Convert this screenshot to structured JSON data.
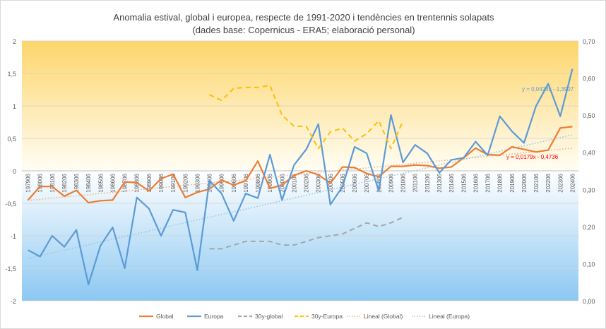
{
  "chart_data": {
    "type": "line",
    "title": "Anomalia estival, global i europea, respecte de 1991-2020 i tendències en trentennis solapats",
    "subtitle": "(dades base: Copernicus - ERA5; elaboració personal)",
    "x": [
      "197906",
      "198006",
      "198106",
      "198206",
      "198306",
      "198406",
      "198506",
      "198606",
      "198706",
      "198806",
      "198906",
      "199006",
      "199106",
      "199206",
      "199306",
      "199406",
      "199506",
      "199606",
      "199706",
      "199806",
      "199906",
      "200006",
      "200106",
      "200206",
      "200306",
      "200406",
      "200506",
      "200606",
      "200706",
      "200806",
      "200906",
      "201006",
      "201106",
      "201206",
      "201306",
      "201406",
      "201506",
      "201606",
      "201706",
      "201806",
      "201906",
      "202006",
      "202106",
      "202206",
      "202306",
      "202406"
    ],
    "ylim": [
      -2,
      2
    ],
    "yticks": [
      "2",
      "1,5",
      "1",
      "0,5",
      "0",
      "-0,5",
      "-1",
      "-1,5",
      "-2"
    ],
    "y2lim": [
      0,
      0.7
    ],
    "y2ticks": [
      "0,70",
      "0,60",
      "0,50",
      "0,40",
      "0,30",
      "0,20",
      "0,10",
      "0,00"
    ],
    "colors": {
      "global": "#ed7d31",
      "europa": "#5b9bd5",
      "g30": "#a5a5a5",
      "e30": "#ffc000",
      "lin_global": "#f4b183",
      "lin_europa": "#9dc3e6",
      "eq_global": "#ff0000",
      "eq_europa": "#5b9bd5"
    },
    "series": [
      {
        "name": "Global",
        "axis": "left",
        "style": "solid",
        "values": [
          -0.45,
          -0.24,
          -0.24,
          -0.39,
          -0.3,
          -0.49,
          -0.46,
          -0.45,
          -0.17,
          -0.18,
          -0.31,
          -0.12,
          -0.05,
          -0.41,
          -0.33,
          -0.28,
          -0.14,
          -0.22,
          -0.15,
          0.15,
          -0.27,
          -0.22,
          -0.07,
          0.0,
          -0.06,
          -0.19,
          0.06,
          0.05,
          -0.04,
          -0.09,
          0.07,
          0.07,
          0.09,
          0.08,
          0.04,
          0.06,
          0.2,
          0.35,
          0.25,
          0.24,
          0.37,
          0.33,
          0.29,
          0.32,
          0.66,
          0.68
        ]
      },
      {
        "name": "Europa",
        "axis": "left",
        "style": "solid",
        "values": [
          -1.22,
          -1.32,
          -1.0,
          -1.17,
          -0.91,
          -1.75,
          -1.15,
          -0.87,
          -1.5,
          -0.41,
          -0.58,
          -1.0,
          -0.6,
          -0.64,
          -1.53,
          -0.15,
          -0.35,
          -0.77,
          -0.35,
          -0.42,
          0.25,
          -0.45,
          0.09,
          0.33,
          0.72,
          -0.52,
          -0.24,
          0.37,
          0.27,
          -0.31,
          0.86,
          0.13,
          0.4,
          0.27,
          -0.03,
          0.17,
          0.2,
          0.45,
          0.24,
          0.84,
          0.61,
          0.43,
          1.0,
          1.34,
          0.84,
          1.57
        ]
      },
      {
        "name": "30y-global",
        "axis": "right",
        "style": "dashed",
        "values": [
          null,
          null,
          null,
          null,
          null,
          null,
          null,
          null,
          null,
          null,
          null,
          null,
          null,
          null,
          null,
          0.14,
          0.14,
          0.15,
          0.16,
          0.16,
          0.16,
          0.15,
          0.15,
          0.16,
          0.17,
          0.175,
          0.18,
          0.195,
          0.21,
          0.2,
          0.21,
          0.225,
          null,
          null,
          null,
          null,
          null,
          null,
          null,
          null,
          null,
          null,
          null,
          null,
          null,
          null
        ]
      },
      {
        "name": "30y-Europa",
        "axis": "right",
        "style": "dashed",
        "values": [
          null,
          null,
          null,
          null,
          null,
          null,
          null,
          null,
          null,
          null,
          null,
          null,
          null,
          null,
          null,
          0.555,
          0.54,
          0.572,
          0.575,
          0.575,
          0.58,
          0.5,
          0.47,
          0.47,
          0.41,
          0.455,
          0.465,
          0.43,
          0.45,
          0.485,
          0.41,
          0.485,
          null,
          null,
          null,
          null,
          null,
          null,
          null,
          null,
          null,
          null,
          null,
          null,
          null,
          null
        ]
      },
      {
        "name": "Lineal  (Global)",
        "axis": "left",
        "style": "dotted",
        "trend": [
          0.0179,
          -0.4736
        ]
      },
      {
        "name": "Lineal  (Europa)",
        "axis": "left",
        "style": "dotted",
        "trend": [
          0.0423,
          -1.3907
        ]
      }
    ],
    "annotations": {
      "eq_europa": "y = 0,0423x - 1,3907",
      "eq_global": "y = 0,0179x - 0,4736"
    },
    "legend_position": "bottom",
    "grid": true
  }
}
